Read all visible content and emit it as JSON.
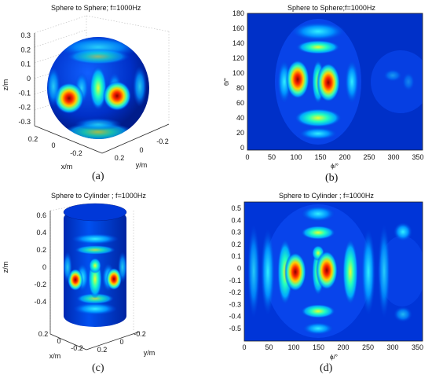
{
  "panels": [
    {
      "id": "a",
      "label": "(a)",
      "title": "Sphere to Sphere; f=1000Hz",
      "zlabel": "z/m",
      "xlabel": "x/m",
      "ylabel": "y/m",
      "zticks": [
        "0.3",
        "0.2",
        "0.1",
        "0",
        "-0.1",
        "-0.2",
        "-0.3"
      ],
      "xticks": [
        "0.2",
        "0",
        "-0.2"
      ],
      "yticks": [
        "-0.2",
        "0",
        "0.2"
      ]
    },
    {
      "id": "b",
      "label": "(b)",
      "title": "Sphere to Sphere;f=1000Hz",
      "xlabel": "ϕ/°",
      "ylabel": "θ/°",
      "xticks": [
        "0",
        "50",
        "100",
        "150",
        "200",
        "250",
        "300",
        "350"
      ],
      "yticks": [
        "180",
        "160",
        "140",
        "120",
        "100",
        "80",
        "60",
        "40",
        "20",
        "0"
      ]
    },
    {
      "id": "c",
      "label": "(c)",
      "title": "Sphere to Cylinder ; f=1000Hz",
      "zlabel": "z/m",
      "xlabel": "x/m",
      "ylabel": "y/m",
      "zticks": [
        "0.6",
        "0.4",
        "0.2",
        "0",
        "-0.2",
        "-0.4"
      ],
      "xticks": [
        "0.2",
        "0",
        "-0.2"
      ],
      "yticks": [
        "-0.2",
        "0",
        "0.2"
      ]
    },
    {
      "id": "d",
      "label": "(d)",
      "title": "Sphere to Cylinder ; f=1000Hz",
      "xlabel": "ϕ/°",
      "xticks": [
        "0",
        "50",
        "100",
        "150",
        "200",
        "250",
        "300",
        "350"
      ],
      "yticks": [
        "0.5",
        "0.4",
        "0.3",
        "0.2",
        "0.1",
        "0",
        "-0.1",
        "-0.2",
        "-0.3",
        "-0.4",
        "-0.5"
      ]
    }
  ],
  "chart_data": [
    {
      "type": "heatmap",
      "panel": "a",
      "title": "Sphere to Sphere; f=1000Hz",
      "zlabel": "z/m",
      "xlabel": "x/m",
      "ylabel": "y/m",
      "zlim": [
        -0.3,
        0.3
      ]
    },
    {
      "type": "heatmap",
      "panel": "b",
      "title": "Sphere to Sphere;f=1000Hz",
      "xlabel": "ϕ/°",
      "ylabel": "θ/°",
      "xlim": [
        0,
        360
      ],
      "ylim": [
        0,
        180
      ],
      "peaks": [
        {
          "phi": 103,
          "theta": 93
        },
        {
          "phi": 160,
          "theta": 90
        }
      ]
    },
    {
      "type": "heatmap",
      "panel": "c",
      "title": "Sphere to Cylinder ; f=1000Hz",
      "zlabel": "z/m",
      "xlabel": "x/m",
      "ylabel": "y/m",
      "zlim": [
        -0.5,
        0.6
      ]
    },
    {
      "type": "heatmap",
      "panel": "d",
      "title": "Sphere to Cylinder ; f=1000Hz",
      "xlabel": "ϕ/°",
      "xlim": [
        0,
        360
      ],
      "ylim": [
        -0.55,
        0.55
      ],
      "peaks": [
        {
          "phi": 102,
          "z": -0.01
        },
        {
          "phi": 160,
          "z": 0.0
        }
      ]
    }
  ]
}
